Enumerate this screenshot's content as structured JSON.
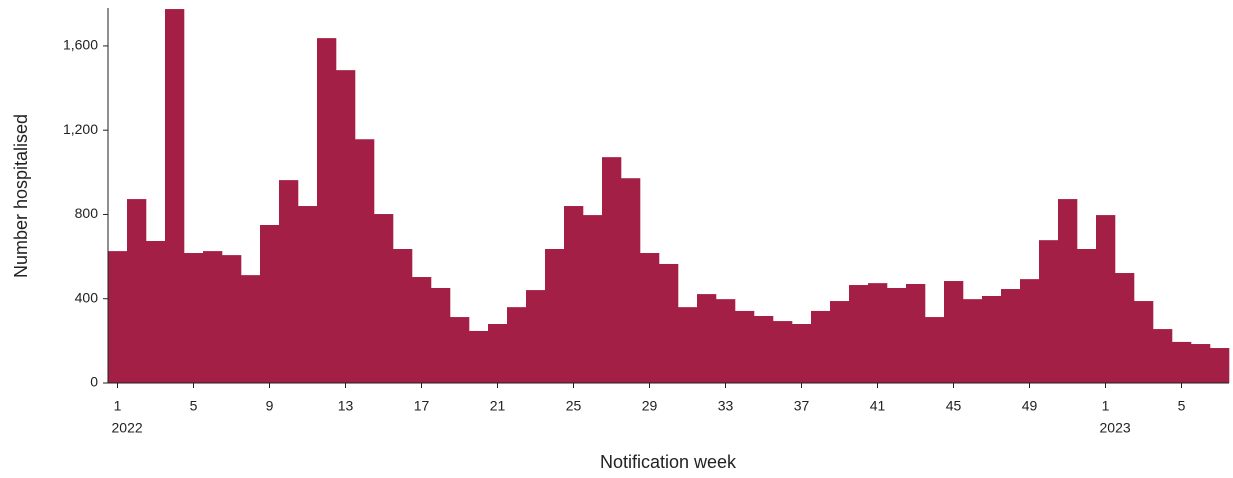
{
  "chart_data": {
    "type": "bar",
    "x_label": "Notification week",
    "y_label": "Number hospitalised",
    "color": "#a41f45",
    "categories": [
      "1",
      null,
      null,
      null,
      "5",
      null,
      null,
      null,
      "9",
      null,
      null,
      null,
      "13",
      null,
      null,
      null,
      "17",
      null,
      null,
      null,
      "21",
      null,
      null,
      null,
      "25",
      null,
      null,
      null,
      "29",
      null,
      null,
      null,
      "33",
      null,
      null,
      null,
      "37",
      null,
      null,
      null,
      "41",
      null,
      null,
      null,
      "45",
      null,
      null,
      null,
      "49",
      null,
      null,
      null,
      "1",
      null,
      null,
      null,
      "5",
      null,
      null
    ],
    "year_labels": [
      "2022",
      null,
      null,
      null,
      null,
      null,
      null,
      null,
      null,
      null,
      null,
      null,
      null,
      null,
      null,
      null,
      null,
      null,
      null,
      null,
      null,
      null,
      null,
      null,
      null,
      null,
      null,
      null,
      null,
      null,
      null,
      null,
      null,
      null,
      null,
      null,
      null,
      null,
      null,
      null,
      null,
      null,
      null,
      null,
      null,
      null,
      null,
      null,
      null,
      null,
      null,
      null,
      "2023",
      null,
      null,
      null,
      null,
      null,
      null
    ],
    "values": [
      626,
      873,
      674,
      1775,
      617,
      626,
      607,
      512,
      750,
      963,
      840,
      1637,
      1485,
      1157,
      802,
      636,
      503,
      451,
      313,
      247,
      280,
      360,
      441,
      636,
      840,
      797,
      1072,
      972,
      617,
      565,
      360,
      422,
      398,
      342,
      318,
      294,
      280,
      342,
      389,
      465,
      474,
      451,
      470,
      313,
      484,
      398,
      413,
      446,
      493,
      678,
      873,
      636,
      797,
      522,
      389,
      256,
      195,
      185,
      166
    ],
    "ylim": [
      0,
      1780
    ],
    "yticks": [
      0,
      400,
      800,
      {
        "value": 1200,
        "label": "1,200"
      },
      {
        "value": 1600,
        "label": "1,600"
      }
    ]
  }
}
